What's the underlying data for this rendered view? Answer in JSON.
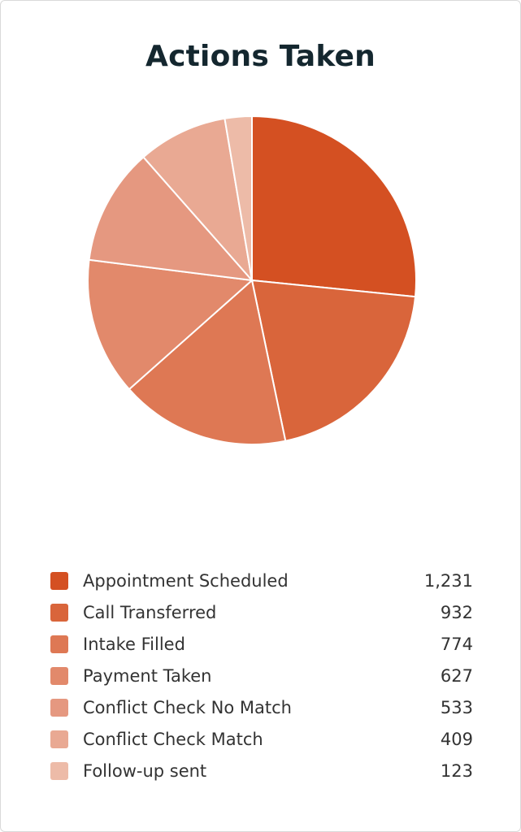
{
  "chart_data": {
    "type": "pie",
    "title": "Actions Taken",
    "categories": [
      "Appointment Scheduled",
      "Call Transferred",
      "Intake Filled",
      "Payment Taken",
      "Conflict Check No Match",
      "Conflict Check Match",
      "Follow-up sent"
    ],
    "values": [
      1231,
      932,
      774,
      627,
      533,
      409,
      123
    ],
    "value_labels": [
      "1,231",
      "932",
      "774",
      "627",
      "533",
      "409",
      "123"
    ],
    "colors": [
      "#d45022",
      "#d9653b",
      "#de7854",
      "#e2896b",
      "#e59880",
      "#e9a993",
      "#edbba8"
    ],
    "legend_position": "bottom"
  }
}
